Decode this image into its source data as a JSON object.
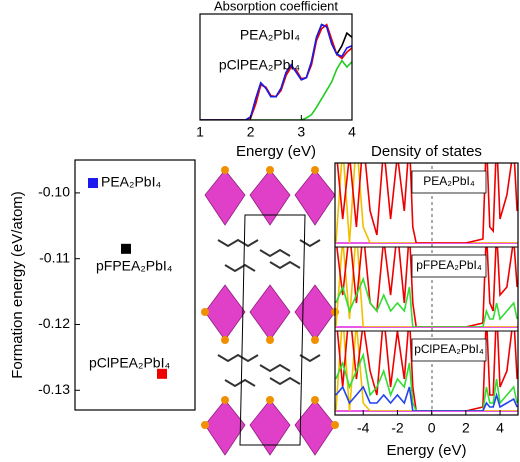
{
  "chart_data": [
    {
      "type": "line",
      "title": "Absorption coefficient",
      "x_label": "Energy (eV)",
      "x": [
        1.0,
        1.1,
        1.2,
        1.3,
        1.4,
        1.5,
        1.6,
        1.7,
        1.8,
        1.9,
        2.0,
        2.1,
        2.2,
        2.3,
        2.4,
        2.5,
        2.6,
        2.7,
        2.8,
        2.9,
        3.0,
        3.1,
        3.2,
        3.3,
        3.4,
        3.5,
        3.6,
        3.7,
        3.8,
        3.9,
        4.0
      ],
      "xlim": [
        1,
        4
      ],
      "xticks": [
        1,
        2,
        3,
        4
      ],
      "ylim": [
        0,
        1
      ],
      "series": [
        {
          "color": "#22cc22",
          "values": [
            0,
            0,
            0,
            0,
            0,
            0,
            0,
            0,
            0,
            0,
            0,
            0,
            0,
            0,
            0,
            0,
            0,
            0,
            0,
            0,
            0,
            0.02,
            0.05,
            0.12,
            0.2,
            0.28,
            0.36,
            0.48,
            0.56,
            0.5,
            0.55
          ]
        },
        {
          "color": "#000000",
          "values": [
            0,
            0,
            0,
            0,
            0,
            0,
            0,
            0,
            0,
            0,
            0.03,
            0.2,
            0.35,
            0.3,
            0.22,
            0.22,
            0.3,
            0.45,
            0.52,
            0.45,
            0.38,
            0.4,
            0.55,
            0.78,
            0.9,
            0.88,
            0.72,
            0.62,
            0.7,
            0.82,
            0.78
          ]
        },
        {
          "name": "pClPEA₂PbI₄",
          "color": "#ee0000",
          "values": [
            0,
            0,
            0,
            0,
            0,
            0,
            0,
            0,
            0,
            0,
            0.02,
            0.15,
            0.33,
            0.31,
            0.23,
            0.22,
            0.28,
            0.42,
            0.5,
            0.47,
            0.39,
            0.4,
            0.52,
            0.75,
            0.86,
            0.9,
            0.76,
            0.62,
            0.58,
            0.64,
            0.68
          ]
        },
        {
          "name": "PEA₂PbI₄",
          "color": "#1a1aee",
          "values": [
            0,
            0,
            0,
            0,
            0,
            0,
            0,
            0,
            0,
            0,
            0.03,
            0.2,
            0.35,
            0.3,
            0.22,
            0.22,
            0.3,
            0.45,
            0.52,
            0.45,
            0.38,
            0.4,
            0.55,
            0.78,
            0.9,
            0.88,
            0.72,
            0.62,
            0.6,
            0.68,
            0.7
          ]
        }
      ]
    },
    {
      "type": "scatter",
      "y_label": "Formation energy (eV/atom)",
      "categories": [
        "PEA₂PbI₄",
        "pFPEA₂PbI₄",
        "pClPEA₂PbI₄"
      ],
      "values": [
        -0.0985,
        -0.1085,
        -0.1275
      ],
      "colors": [
        "#1a1aee",
        "#000000",
        "#ee0000"
      ],
      "ylim": [
        -0.133,
        -0.095
      ],
      "yticks": [
        {
          "value": -0.1,
          "label": "-0.10"
        },
        {
          "value": -0.11,
          "label": "-0.11"
        },
        {
          "value": -0.12,
          "label": "-0.12"
        },
        {
          "value": -0.13,
          "label": "-0.13"
        }
      ]
    },
    {
      "type": "dos",
      "title": "Density of states",
      "x_label": "Energy (eV)",
      "x": [
        -5.6,
        -5.2,
        -4.8,
        -4.4,
        -4.0,
        -3.6,
        -3.2,
        -2.8,
        -2.4,
        -2.0,
        -1.6,
        -1.3,
        -1.1,
        -0.9,
        0,
        1,
        2,
        3.0,
        3.2,
        3.4,
        3.6,
        3.8,
        4.0,
        4.4,
        4.8,
        5.0
      ],
      "xlim": [
        -5.65,
        5.05
      ],
      "xticks": [
        -4,
        -2,
        0,
        2,
        4
      ],
      "ylim": [
        0,
        1
      ],
      "panels": [
        {
          "label": "PEA₂PbI₄",
          "series": [
            {
              "color": "#f0c000",
              "values": [
                0,
                1.2,
                0,
                1.3,
                0.2,
                0,
                0,
                0,
                0,
                0,
                0,
                0,
                0,
                0,
                0,
                0,
                0,
                0,
                0,
                0,
                0,
                0,
                0,
                0,
                0,
                0
              ]
            },
            {
              "color": "#ee0000",
              "values": [
                1.2,
                0.3,
                1.1,
                0.2,
                1.3,
                0.4,
                0.1,
                1.2,
                0.3,
                1.1,
                0.4,
                1.3,
                0.2,
                0,
                0,
                0,
                0,
                0.05,
                1.3,
                0.2,
                0.15,
                1.3,
                0.3,
                0.6,
                1.2,
                0.4
              ]
            }
          ]
        },
        {
          "label": "pFPEA₂PbI₄",
          "series": [
            {
              "color": "#f0c000",
              "values": [
                0,
                1.1,
                0.1,
                1.2,
                0,
                0,
                0,
                0,
                0,
                0,
                0,
                0,
                0,
                0,
                0,
                0,
                0,
                0,
                0,
                0,
                0,
                0,
                0,
                0,
                0,
                0
              ]
            },
            {
              "color": "#ee0000",
              "values": [
                1.1,
                0.4,
                1.2,
                0.3,
                1.2,
                0.3,
                0.2,
                1.1,
                0.4,
                1.2,
                0.3,
                1.2,
                0.3,
                0,
                0,
                0,
                0,
                0.05,
                1.2,
                0.3,
                0.2,
                1.2,
                0.4,
                0.5,
                1.1,
                0.5
              ]
            },
            {
              "color": "#33dd33",
              "values": [
                0.3,
                0.5,
                0.2,
                0.4,
                0.6,
                0.3,
                0.2,
                0.4,
                0.2,
                0.3,
                0.2,
                0.5,
                0,
                0,
                0,
                0,
                0,
                0,
                0.2,
                0.1,
                0.1,
                0.3,
                0.1,
                0.2,
                0.3,
                0.1
              ]
            }
          ]
        },
        {
          "label": "pClPEA₂PbI₄",
          "series": [
            {
              "color": "#f0c000",
              "values": [
                0,
                1.2,
                0,
                1.1,
                0.1,
                0,
                0,
                0,
                0,
                0,
                0,
                0,
                0,
                0,
                0,
                0,
                0,
                0,
                0,
                0,
                0,
                0,
                0,
                0,
                0,
                0
              ]
            },
            {
              "color": "#ee0000",
              "values": [
                1.2,
                0.3,
                1.3,
                0.4,
                1.1,
                0.5,
                0.2,
                1.2,
                0.3,
                1.0,
                0.4,
                1.2,
                0.3,
                0,
                0,
                0,
                0,
                0.05,
                1.2,
                0.2,
                0.2,
                1.3,
                0.3,
                0.5,
                1.2,
                0.4
              ]
            },
            {
              "color": "#33dd33",
              "values": [
                0.4,
                0.6,
                0.3,
                0.5,
                0.7,
                0.2,
                0.3,
                0.5,
                0.2,
                0.4,
                0.3,
                0.6,
                0.1,
                0,
                0,
                0,
                0,
                0,
                0.3,
                0.1,
                0.1,
                0.4,
                0.1,
                0.2,
                0.3,
                0.1
              ]
            },
            {
              "color": "#2244ee",
              "values": [
                0.2,
                0.3,
                0.1,
                0.2,
                0.3,
                0.1,
                0.1,
                0.2,
                0.1,
                0.2,
                0.1,
                0.3,
                0,
                0,
                0,
                0,
                0,
                0,
                0.1,
                0.05,
                0.05,
                0.2,
                0.05,
                0.1,
                0.15,
                0.05
              ]
            }
          ]
        }
      ]
    }
  ]
}
